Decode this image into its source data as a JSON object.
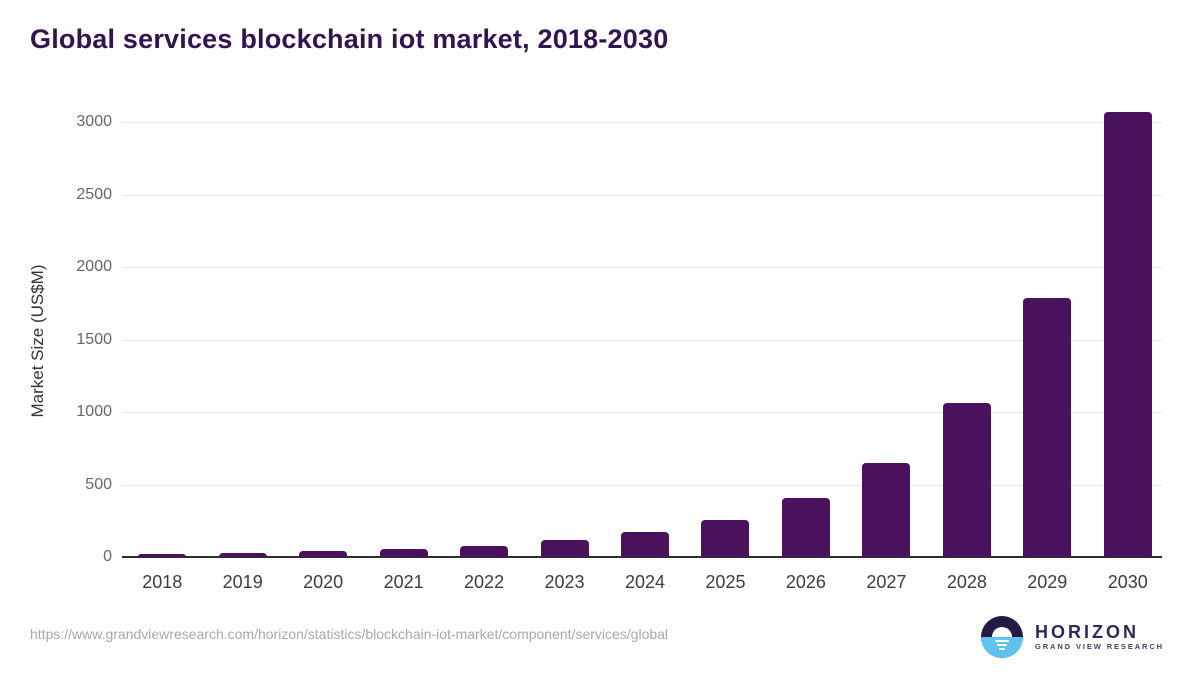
{
  "chart_data": {
    "type": "bar",
    "title": "Global services blockchain iot market, 2018-2030",
    "categories": [
      "2018",
      "2019",
      "2020",
      "2021",
      "2022",
      "2023",
      "2024",
      "2025",
      "2026",
      "2027",
      "2028",
      "2029",
      "2030"
    ],
    "values": [
      22,
      31,
      41,
      55,
      76,
      116,
      173,
      258,
      406,
      647,
      1062,
      1785,
      3068
    ],
    "xlabel": "",
    "ylabel": "Market Size (US$M)",
    "ylim": [
      0,
      3000
    ],
    "yticks": [
      0,
      500,
      1000,
      1500,
      2000,
      2500,
      3000
    ],
    "grid": true,
    "legend": false,
    "bar_color": "#4a115c"
  },
  "colors": {
    "title": "#321450",
    "bar": "#4a115c",
    "gridline": "#e7e7e7",
    "axis_line": "#2e2e2e",
    "ytick_text": "#666666",
    "xtick_text": "#3d3d3d",
    "url_text": "#a8a8a8",
    "logo_dark": "#241a45",
    "logo_blue": "#5fc3ef"
  },
  "footer": {
    "url": "https://www.grandviewresearch.com/horizon/statistics/blockchain-iot-market/component/services/global"
  },
  "logo": {
    "name": "HORIZON",
    "subtitle": "GRAND VIEW RESEARCH"
  }
}
